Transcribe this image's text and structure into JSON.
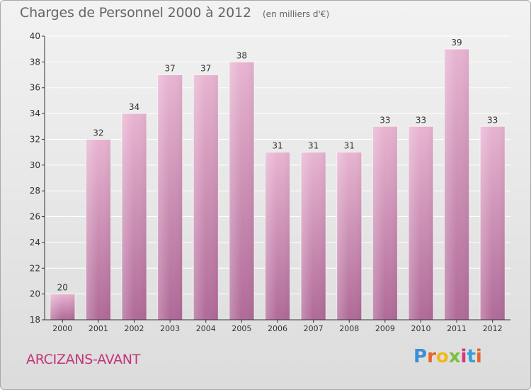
{
  "header": {
    "title": "Charges de Personnel 2000 à 2012",
    "unit": "(en milliers d'€)"
  },
  "footer": {
    "town": "ARCIZANS-AVANT",
    "logo": "Proxiti",
    "logo_colors": [
      "#3a8fd6",
      "#e8632a",
      "#f1b81c",
      "#7cbf3d",
      "#d5367e",
      "#2fa3d8",
      "#e8632a"
    ]
  },
  "colors": {
    "bar": "#d98fba",
    "bar_light": "#e8b4d1",
    "bar_dark": "#b06a98",
    "axis": "#333333",
    "grid": "#ffffff",
    "label": "#333333"
  },
  "chart_data": {
    "type": "bar",
    "categories": [
      "2000",
      "2001",
      "2002",
      "2003",
      "2004",
      "2005",
      "2006",
      "2007",
      "2008",
      "2009",
      "2010",
      "2011",
      "2012"
    ],
    "values": [
      20,
      32,
      34,
      37,
      37,
      38,
      31,
      31,
      31,
      33,
      33,
      39,
      33
    ],
    "ylim": [
      18,
      40
    ],
    "yticks": [
      18,
      20,
      22,
      24,
      26,
      28,
      30,
      32,
      34,
      36,
      38,
      40
    ],
    "grid": true,
    "data_labels": true
  }
}
